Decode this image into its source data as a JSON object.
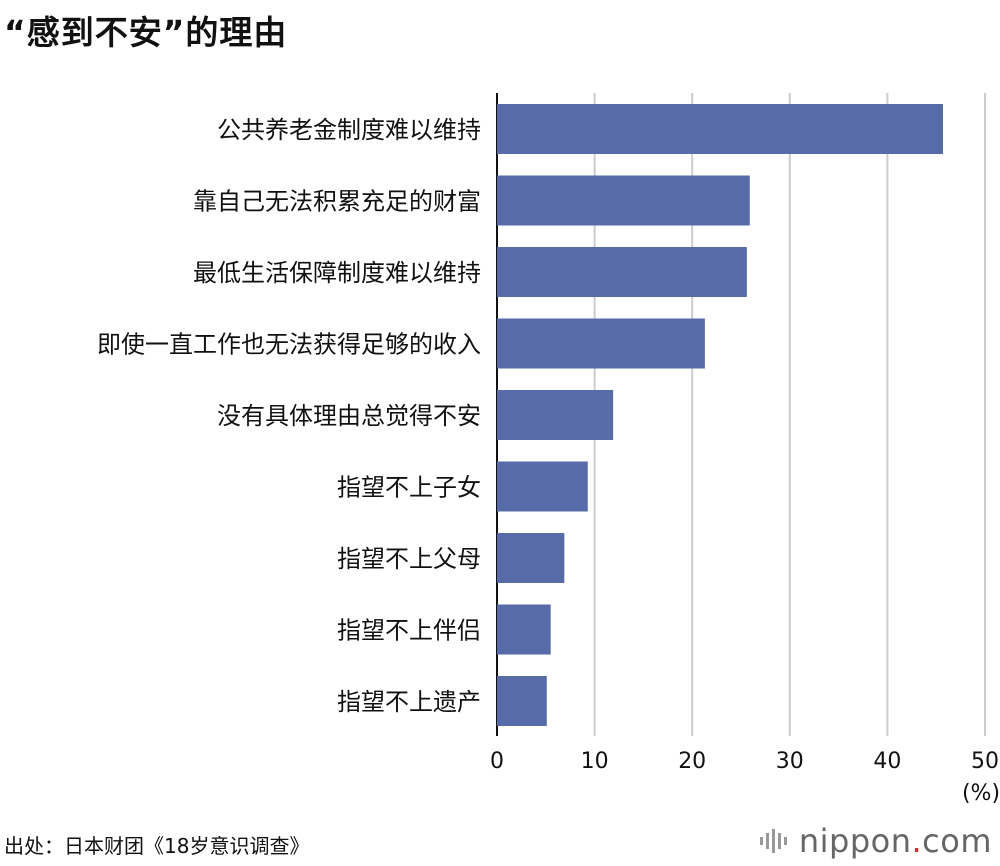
{
  "page_title": "“感到不安”的理由",
  "chart_data": {
    "type": "bar",
    "orientation": "horizontal",
    "title": "“感到不安”的理由",
    "categories": [
      "公共养老金制度难以维持",
      "靠自己无法积累充足的财富",
      "最低生活保障制度难以维持",
      "即使一直工作也无法获得足够的收入",
      "没有具体理由总觉得不安",
      "指望不上子女",
      "指望不上父母",
      "指望不上伴侣",
      "指望不上遗产"
    ],
    "values": [
      45.7,
      25.9,
      25.6,
      21.3,
      11.9,
      9.3,
      6.9,
      5.5,
      5.1
    ],
    "xlim": [
      0,
      50
    ],
    "xticks": [
      0,
      10,
      20,
      30,
      40,
      50
    ],
    "xlabel": "(%)",
    "grid": true,
    "bar_color": "#576ba8",
    "grid_color": "#cccccc"
  },
  "source": "出处：日本财团《18岁意识调查》",
  "brand": {
    "name": "nippon",
    "dot": ".",
    "suffix": "com",
    "accent": "#d0312d"
  }
}
